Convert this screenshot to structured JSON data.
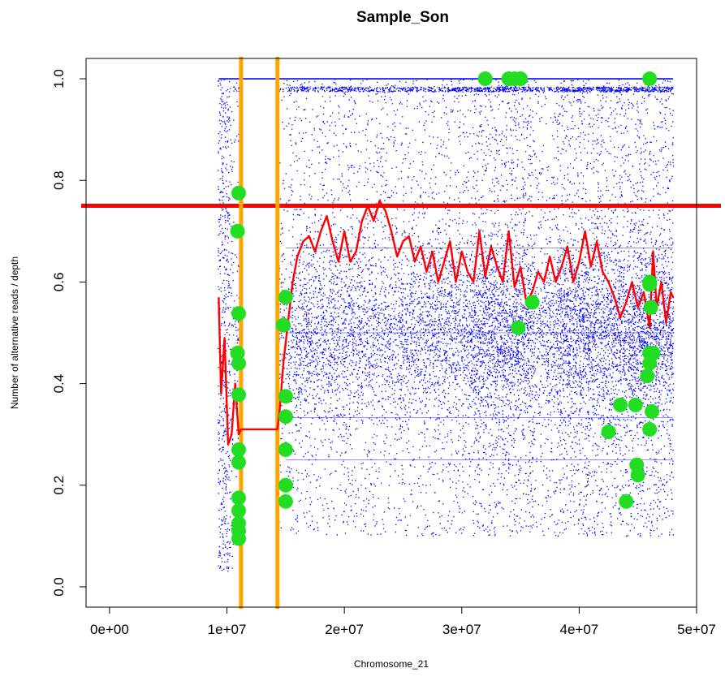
{
  "chart_data": {
    "type": "scatter",
    "title": "Sample_Son",
    "xlabel": "Chromosome_21",
    "ylabel": "Number of alternative reads / depth",
    "xlim": [
      -2000000,
      50000000
    ],
    "ylim": [
      -0.04,
      1.04
    ],
    "xticks": [
      0,
      10000000,
      20000000,
      30000000,
      40000000,
      50000000
    ],
    "xtick_labels": [
      "0e+00",
      "1e+07",
      "2e+07",
      "3e+07",
      "4e+07",
      "5e+07"
    ],
    "yticks": [
      0.0,
      0.2,
      0.4,
      0.6,
      0.8,
      1.0
    ],
    "ytick_labels": [
      "0.0",
      "0.2",
      "0.4",
      "0.6",
      "0.8",
      "1.0"
    ],
    "grid": false,
    "colors": {
      "points": "#0000ff",
      "highlight_points": "#22dd22",
      "smoothed_line": "#ff0000",
      "threshold_line": "#ff0000",
      "region_lines": "#ffa500"
    },
    "threshold_y": 0.75,
    "region_boundaries_x": [
      11200000,
      14300000
    ],
    "smoothed_line": {
      "x": [
        9300000,
        9500000,
        9800000,
        10100000,
        10400000,
        10700000,
        11000000,
        11200000,
        12000000,
        13000000,
        14300000,
        14500000,
        14800000,
        15200000,
        15600000,
        16000000,
        16500000,
        17000000,
        17500000,
        18000000,
        18500000,
        19000000,
        19500000,
        20000000,
        20500000,
        21000000,
        21500000,
        22000000,
        22500000,
        23000000,
        23500000,
        24000000,
        24500000,
        25000000,
        25500000,
        26000000,
        26500000,
        27000000,
        27500000,
        28000000,
        28500000,
        29000000,
        29500000,
        30000000,
        30500000,
        31000000,
        31500000,
        32000000,
        32500000,
        33000000,
        33500000,
        34000000,
        34500000,
        35000000,
        35500000,
        36000000,
        36500000,
        37000000,
        37500000,
        38000000,
        38500000,
        39000000,
        39500000,
        40000000,
        40500000,
        41000000,
        41500000,
        42000000,
        42500000,
        43000000,
        43500000,
        44000000,
        44500000,
        45000000,
        45500000,
        46000000,
        46300000,
        46600000,
        47000000,
        47400000,
        47800000,
        48000000
      ],
      "y": [
        0.57,
        0.38,
        0.49,
        0.28,
        0.3,
        0.4,
        0.3,
        0.31,
        0.31,
        0.31,
        0.31,
        0.35,
        0.44,
        0.52,
        0.6,
        0.65,
        0.68,
        0.69,
        0.66,
        0.7,
        0.73,
        0.68,
        0.64,
        0.7,
        0.64,
        0.66,
        0.72,
        0.75,
        0.72,
        0.76,
        0.74,
        0.7,
        0.65,
        0.68,
        0.69,
        0.64,
        0.67,
        0.62,
        0.66,
        0.6,
        0.64,
        0.68,
        0.6,
        0.66,
        0.62,
        0.6,
        0.7,
        0.61,
        0.67,
        0.63,
        0.6,
        0.7,
        0.59,
        0.63,
        0.56,
        0.58,
        0.62,
        0.6,
        0.65,
        0.6,
        0.63,
        0.67,
        0.6,
        0.64,
        0.7,
        0.63,
        0.68,
        0.62,
        0.6,
        0.57,
        0.53,
        0.56,
        0.6,
        0.55,
        0.58,
        0.51,
        0.66,
        0.55,
        0.6,
        0.52,
        0.58,
        0.57
      ]
    },
    "highlight_points": {
      "x": [
        11000000,
        10900000,
        11000000,
        10900000,
        11000000,
        11000000,
        11000000,
        11000000,
        11000000,
        11000000,
        11000000,
        11000000,
        11000000,
        15000000,
        14800000,
        15000000,
        15000000,
        15000000,
        15000000,
        15000000,
        32000000,
        34000000,
        34500000,
        35000000,
        34800000,
        36000000,
        42500000,
        43500000,
        44000000,
        44800000,
        44900000,
        45000000,
        45800000,
        46000000,
        46000000,
        46000000,
        46200000,
        46300000,
        46100000,
        46000000,
        46000000,
        46000000
      ],
      "y": [
        0.775,
        0.7,
        0.538,
        0.46,
        0.44,
        0.378,
        0.27,
        0.245,
        0.175,
        0.15,
        0.125,
        0.11,
        0.095,
        0.57,
        0.515,
        0.375,
        0.335,
        0.27,
        0.2,
        0.168,
        1.0,
        1.0,
        1.0,
        1.0,
        0.51,
        0.56,
        0.305,
        0.358,
        0.168,
        0.358,
        0.24,
        0.22,
        0.415,
        0.44,
        0.46,
        0.31,
        0.345,
        0.46,
        0.55,
        0.595,
        1.0,
        0.6
      ]
    }
  }
}
